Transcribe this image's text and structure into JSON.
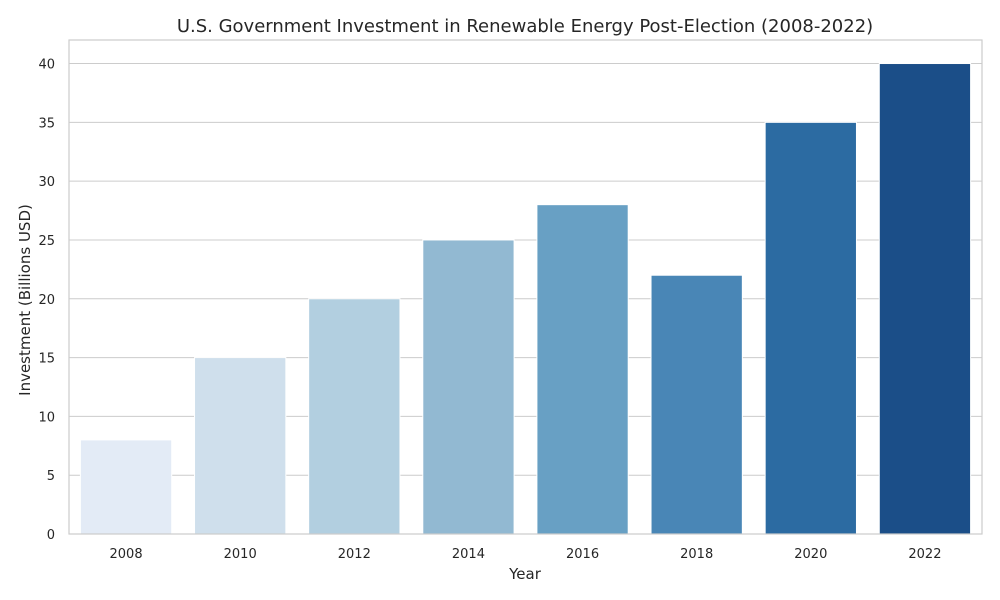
{
  "chart_data": {
    "type": "bar",
    "title": "U.S. Government Investment in Renewable Energy Post-Election (2008-2022)",
    "xlabel": "Year",
    "ylabel": "Investment (Billions USD)",
    "categories": [
      "2008",
      "2010",
      "2012",
      "2014",
      "2016",
      "2018",
      "2020",
      "2022"
    ],
    "values": [
      8,
      15,
      20,
      25,
      28,
      22,
      35,
      40
    ],
    "colors": [
      "#e3ebf6",
      "#cfdfec",
      "#b2cfe0",
      "#92b9d2",
      "#68a0c4",
      "#4986b6",
      "#2c6ba2",
      "#1b4e88"
    ],
    "ylim": [
      0,
      42
    ],
    "yticks": [
      0,
      5,
      10,
      15,
      20,
      25,
      30,
      35,
      40
    ],
    "grid": true,
    "legend": "none"
  }
}
